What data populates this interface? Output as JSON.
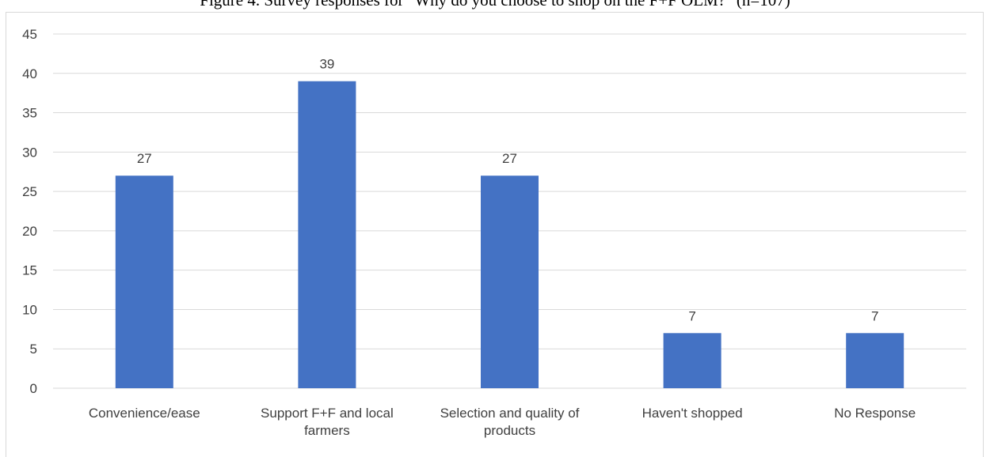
{
  "figure_title": "Figure 4. Survey responses for \"Why do you choose to shop on the F+F OLM?\" (n=107)",
  "chart_data": {
    "type": "bar",
    "title": "",
    "xlabel": "",
    "ylabel": "",
    "categories": [
      [
        "Convenience/ease"
      ],
      [
        "Support F+F and local",
        "farmers"
      ],
      [
        "Selection and quality of",
        "products"
      ],
      [
        "Haven't shopped"
      ],
      [
        "No Response"
      ]
    ],
    "values": [
      27,
      39,
      27,
      7,
      7
    ],
    "data_labels": [
      "27",
      "39",
      "27",
      "7",
      "7"
    ],
    "ylim": [
      0,
      45
    ],
    "yticks": [
      0,
      5,
      10,
      15,
      20,
      25,
      30,
      35,
      40,
      45
    ],
    "grid": true,
    "legend": false,
    "colors": {
      "bar": "#4472c4",
      "grid": "#d9d9d9",
      "text": "#404040"
    }
  }
}
